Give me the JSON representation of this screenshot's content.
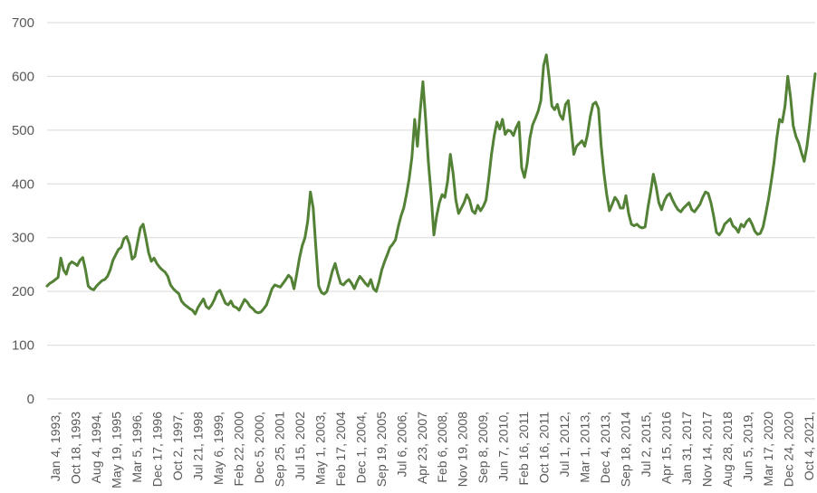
{
  "chart_data": {
    "type": "line",
    "title": "",
    "xlabel": "",
    "ylabel": "",
    "ylim": [
      0,
      700
    ],
    "yticks": [
      0,
      100,
      200,
      300,
      400,
      500,
      600,
      700
    ],
    "grid": true,
    "legend": "none",
    "line_color": "#538135",
    "xtick_labels": [
      "Jan 4, 1993,",
      "Oct 18, 1993",
      "Aug 4, 1994,",
      "May 19, 1995",
      "Mar 5, 1996,",
      "Dec 17, 1996",
      "Oct 2, 1997,",
      "Jul 21, 1998",
      "May 6, 1999,",
      "Feb 22, 2000",
      "Dec 5, 2000,",
      "Sep 25, 2001",
      "Jul 15, 2002",
      "May 1, 2003,",
      "Feb 17, 2004",
      "Dec 1, 2004,",
      "Sep 19, 2005",
      "Jul 6, 2006,",
      "Apr 23, 2007",
      "Feb 6, 2008,",
      "Nov 19, 2008",
      "Sep 8, 2009,",
      "Jun 7, 2010,",
      "Feb 16, 2011",
      "Oct 16, 2011",
      "Jul 1, 2012,",
      "Mar 1, 2013,",
      "Dec 4, 2013,",
      "Sep 18, 2014",
      "Jul 2, 2015,",
      "Apr 15, 2016",
      "Jan 31, 2017",
      "Nov 14, 2017",
      "Aug 28, 2018",
      "Jun 5, 2019,",
      "Mar 17, 2020",
      "Dec 24, 2020",
      "Oct 4, 2021,"
    ],
    "series": [
      {
        "values": [
          210,
          215,
          218,
          222,
          226,
          262,
          240,
          232,
          250,
          255,
          252,
          248,
          258,
          263,
          240,
          210,
          205,
          203,
          210,
          215,
          220,
          222,
          228,
          240,
          258,
          268,
          278,
          282,
          298,
          302,
          288,
          260,
          265,
          292,
          318,
          325,
          300,
          272,
          256,
          262,
          252,
          245,
          240,
          236,
          228,
          212,
          205,
          200,
          196,
          182,
          176,
          172,
          168,
          165,
          158,
          170,
          178,
          186,
          172,
          168,
          175,
          185,
          198,
          202,
          190,
          178,
          175,
          182,
          172,
          170,
          165,
          175,
          185,
          180,
          172,
          168,
          162,
          160,
          162,
          168,
          175,
          190,
          205,
          212,
          210,
          208,
          215,
          222,
          230,
          225,
          205,
          232,
          262,
          285,
          300,
          330,
          385,
          355,
          280,
          210,
          198,
          195,
          200,
          218,
          238,
          252,
          232,
          215,
          212,
          218,
          222,
          215,
          205,
          218,
          228,
          222,
          215,
          210,
          222,
          205,
          200,
          218,
          240,
          255,
          268,
          282,
          288,
          296,
          320,
          340,
          355,
          380,
          410,
          450,
          520,
          470,
          535,
          590,
          520,
          440,
          380,
          305,
          340,
          365,
          380,
          375,
          405,
          455,
          420,
          370,
          345,
          355,
          365,
          380,
          370,
          350,
          345,
          360,
          350,
          358,
          370,
          410,
          455,
          490,
          515,
          502,
          520,
          492,
          500,
          498,
          490,
          505,
          515,
          430,
          412,
          438,
          485,
          510,
          522,
          535,
          555,
          620,
          640,
          598,
          545,
          538,
          548,
          528,
          520,
          548,
          555,
          505,
          455,
          470,
          475,
          480,
          470,
          492,
          525,
          548,
          552,
          540,
          470,
          420,
          380,
          350,
          362,
          375,
          368,
          355,
          355,
          378,
          345,
          325,
          322,
          325,
          320,
          318,
          320,
          355,
          385,
          418,
          395,
          365,
          352,
          368,
          378,
          382,
          370,
          360,
          352,
          348,
          355,
          360,
          365,
          352,
          348,
          355,
          362,
          375,
          385,
          382,
          365,
          340,
          310,
          305,
          312,
          325,
          330,
          335,
          322,
          318,
          310,
          325,
          320,
          330,
          335,
          325,
          312,
          306,
          308,
          320,
          345,
          372,
          405,
          440,
          485,
          520,
          515,
          545,
          600,
          562,
          508,
          488,
          476,
          458,
          442,
          470,
          512,
          562,
          605
        ]
      }
    ]
  }
}
